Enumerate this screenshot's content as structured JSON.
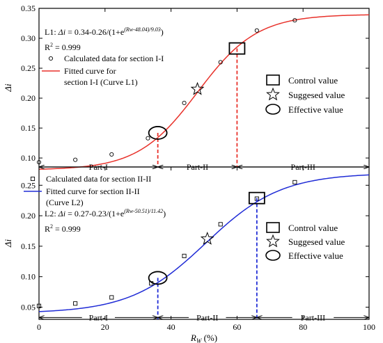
{
  "chart_data": [
    {
      "type": "line",
      "panel": "top",
      "xlabel": "",
      "ylabel": "Δi",
      "xlim": [
        0,
        100
      ],
      "ylim": [
        0.085,
        0.35
      ],
      "yticks": [
        0.1,
        0.15,
        0.2,
        0.25,
        0.3,
        0.35
      ],
      "ytick_labels": [
        "0.10",
        "0.15",
        "0.20",
        "0.25",
        "0.30",
        "0.35"
      ],
      "curve_color": "#e8312a",
      "equation": {
        "label": "L1:",
        "lhs": "Δi",
        "rhs_lead": "= 0.34-0.26/(1+e",
        "exponent": "(Rw-48.04)/9.03",
        "rhs_tail": ")"
      },
      "r2": {
        "label": "R",
        "sup": "2",
        "value": "= 0.999"
      },
      "legend_left": [
        {
          "marker": "circle",
          "text": "Calculated data for section I-I"
        },
        {
          "marker": "line",
          "text": "Fitted curve for",
          "text2": "section I-I (Curve L1)"
        }
      ],
      "legend_right": [
        {
          "marker": "square",
          "text": "Control value"
        },
        {
          "marker": "star",
          "text": "Suggesed value"
        },
        {
          "marker": "ellipse",
          "text": "Effective value"
        }
      ],
      "series": [
        {
          "name": "Calculated data for section I-I",
          "x": [
            0,
            11,
            22,
            33,
            44,
            55,
            66,
            77.5
          ],
          "y": [
            0.093,
            0.097,
            0.106,
            0.133,
            0.192,
            0.26,
            0.313,
            0.33
          ]
        }
      ],
      "fit": {
        "A": 0.34,
        "B": 0.26,
        "x0": 48.04,
        "w": 9.03
      },
      "markers": {
        "control": {
          "x": 60,
          "y": 0.283
        },
        "suggested": {
          "x": 48,
          "y": 0.215
        },
        "effective": {
          "x": 36,
          "y": 0.142
        }
      },
      "dividers": [
        {
          "x": 36,
          "y_top": 0.142
        },
        {
          "x": 60,
          "y_top": 0.283
        }
      ],
      "parts": [
        {
          "label": "Part-I",
          "x0": 0,
          "x1": 36
        },
        {
          "label": "Part-II",
          "x0": 36,
          "x1": 60
        },
        {
          "label": "Part-III",
          "x0": 60,
          "x1": 100
        }
      ],
      "parts_y": 0.085
    },
    {
      "type": "line",
      "panel": "bottom",
      "xlabel": "R",
      "xlabel_sub": "W",
      "xlabel_unit": " (%)",
      "ylabel": "Δi",
      "xlim": [
        0,
        100
      ],
      "ylim": [
        0.03,
        0.28
      ],
      "xticks": [
        0,
        20,
        40,
        60,
        80,
        100
      ],
      "xtick_labels": [
        "0",
        "20",
        "40",
        "60",
        "80",
        "100"
      ],
      "yticks": [
        0.05,
        0.1,
        0.15,
        0.2,
        0.25
      ],
      "ytick_labels": [
        "0.05",
        "0.10",
        "0.15",
        "0.20",
        "0.25"
      ],
      "curve_color": "#1f2bd6",
      "equation": {
        "label": "L2:",
        "lhs": "Δi",
        "rhs_lead": "= 0.27-0.23/(1+e",
        "exponent": "(Rw-50.51)/11.42",
        "rhs_tail": ")"
      },
      "r2": {
        "label": "R",
        "sup": "2",
        "value": "= 0.999"
      },
      "legend_left": [
        {
          "marker": "square",
          "text": "Calculated data for section II-II"
        },
        {
          "marker": "line",
          "text": "Fitted curve for section II-II",
          "text2": "(Curve L2)"
        }
      ],
      "legend_right": [
        {
          "marker": "square",
          "text": "Control value"
        },
        {
          "marker": "star",
          "text": "Suggesed value"
        },
        {
          "marker": "ellipse",
          "text": "Effective value"
        }
      ],
      "series": [
        {
          "name": "Calculated data for section II-II",
          "x": [
            0,
            11,
            22,
            34,
            44,
            55,
            66,
            77.5
          ],
          "y": [
            0.052,
            0.056,
            0.066,
            0.089,
            0.134,
            0.186,
            0.228,
            0.255
          ]
        }
      ],
      "fit": {
        "A": 0.27,
        "B": 0.23,
        "x0": 50.51,
        "w": 11.42
      },
      "markers": {
        "control": {
          "x": 66,
          "y": 0.229
        },
        "suggested": {
          "x": 51,
          "y": 0.162
        },
        "effective": {
          "x": 36,
          "y": 0.098
        }
      },
      "dividers": [
        {
          "x": 36,
          "y_top": 0.098
        },
        {
          "x": 66,
          "y_top": 0.229
        }
      ],
      "parts": [
        {
          "label": "Part-I",
          "x0": 0,
          "x1": 36
        },
        {
          "label": "Part-II",
          "x0": 36,
          "x1": 66
        },
        {
          "label": "Part-III",
          "x0": 66,
          "x1": 100
        }
      ],
      "parts_y": 0.033
    }
  ]
}
